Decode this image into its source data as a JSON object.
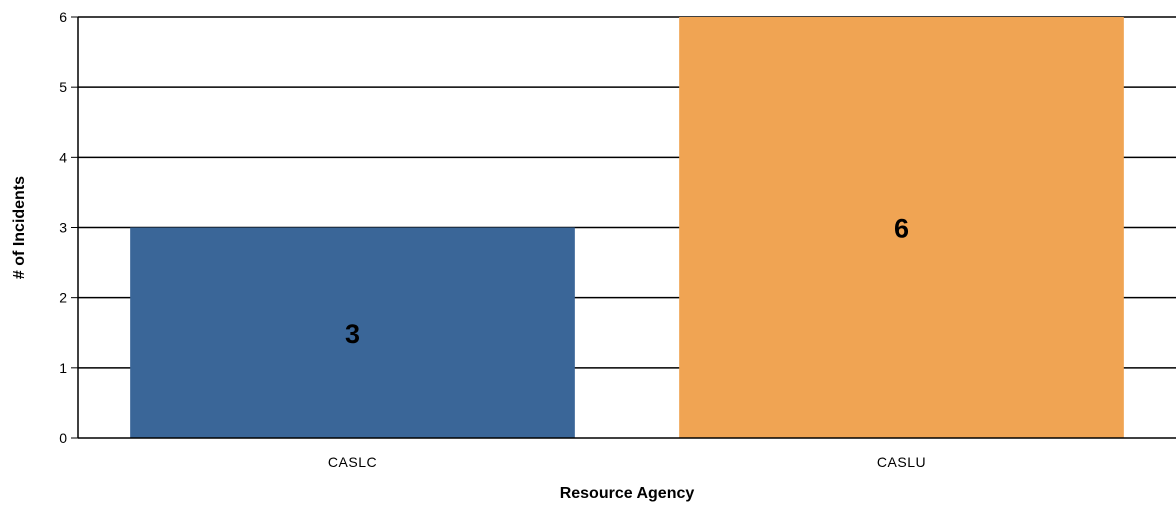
{
  "chart_data": {
    "type": "bar",
    "categories": [
      "CASLC",
      "CASLU"
    ],
    "values": [
      3,
      6
    ],
    "colors": [
      "#3a6698",
      "#f0a453"
    ],
    "xlabel": "Resource Agency",
    "ylabel": "# of Incidents",
    "ylim": [
      0,
      6
    ],
    "yticks": [
      0,
      1,
      2,
      3,
      4,
      5,
      6
    ],
    "grid": true,
    "data_labels": true,
    "legend": "none"
  }
}
